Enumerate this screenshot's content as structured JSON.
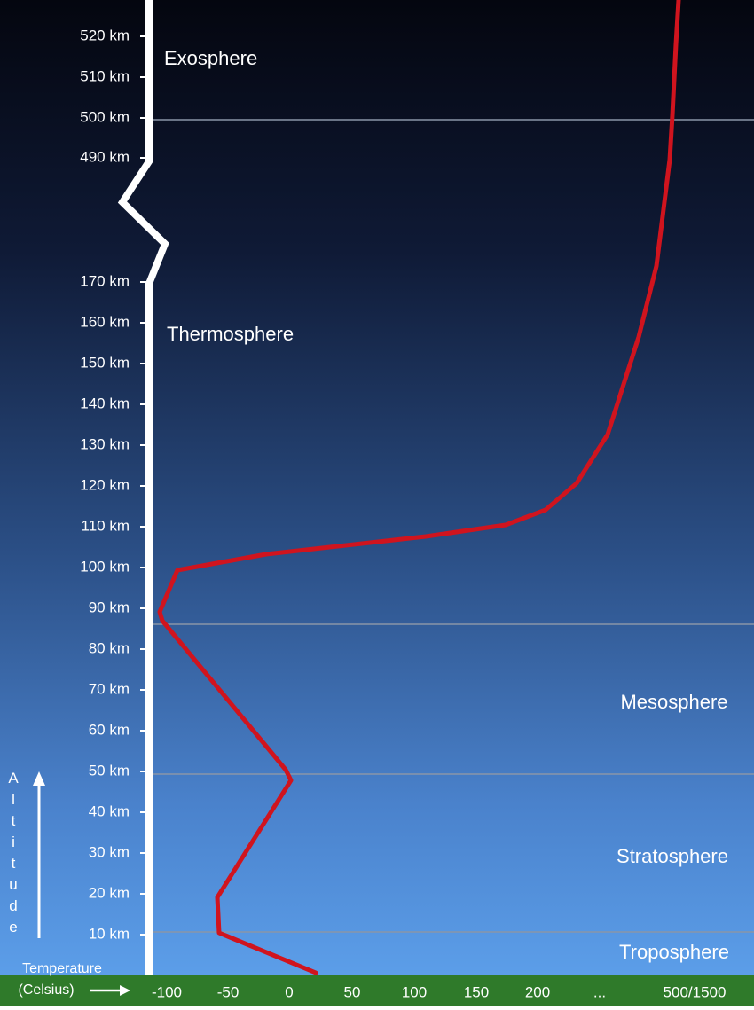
{
  "altitude_labels": [
    "520 km",
    "510 km",
    "500 km",
    "490 km",
    "170 km",
    "160 km",
    "150 km",
    "140 km",
    "130 km",
    "120 km",
    "110 km",
    "100 km",
    "90 km",
    "80 km",
    "70 km",
    "60 km",
    "50 km",
    "40 km",
    "30 km",
    "20 km",
    "10 km"
  ],
  "temperature_labels": [
    "-100",
    "-50",
    "0",
    "50",
    "100",
    "150",
    "200",
    "...",
    "500/1500"
  ],
  "layers": [
    "Exosphere",
    "Thermosphere",
    "Mesosphere",
    "Stratosphere",
    "Troposphere"
  ],
  "axis_titles": {
    "altitude": "Altitude",
    "temperature": "Temperature",
    "temperature_unit": "(Celsius)"
  }
}
